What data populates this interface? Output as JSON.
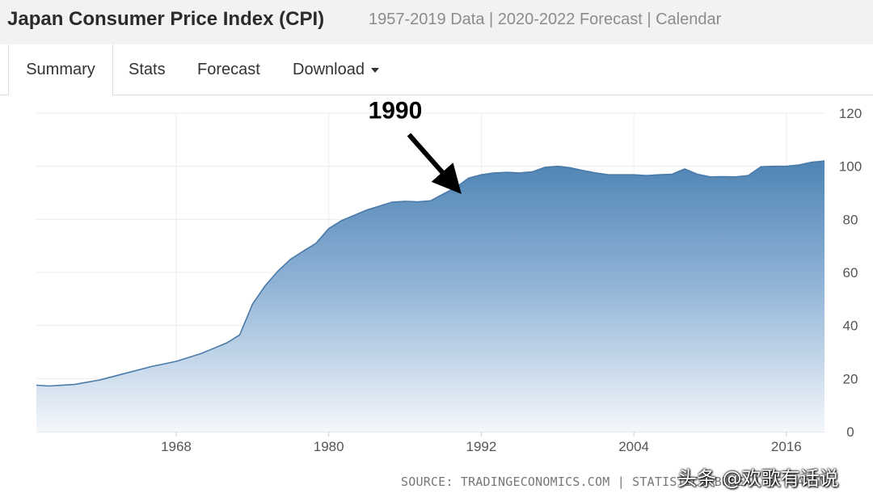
{
  "header": {
    "title": "Japan Consumer Price Index (CPI)",
    "subtitle": "1957-2019 Data | 2020-2022 Forecast | Calendar"
  },
  "tabs": [
    {
      "label": "Summary",
      "active": true
    },
    {
      "label": "Stats",
      "active": false
    },
    {
      "label": "Forecast",
      "active": false
    },
    {
      "label": "Download",
      "active": false,
      "dropdown": true
    }
  ],
  "chart_data": {
    "type": "area",
    "title": "Japan Consumer Price Index (CPI)",
    "xlabel": "",
    "ylabel": "",
    "x_ticks": [
      "1968",
      "1980",
      "1992",
      "2004",
      "2016"
    ],
    "y_ticks": [
      0,
      20,
      40,
      60,
      80,
      100,
      120
    ],
    "xlim": [
      1957,
      2019
    ],
    "ylim": [
      0,
      120
    ],
    "grid": true,
    "y_axis_side": "right",
    "fill_color_top": "#4f84b4",
    "fill_color_bottom": "#f4f7fb",
    "line_color": "#4a7aa8",
    "series": [
      {
        "name": "CPI",
        "x": [
          1957,
          1958,
          1960,
          1962,
          1964,
          1966,
          1968,
          1970,
          1972,
          1973,
          1974,
          1975,
          1976,
          1977,
          1978,
          1979,
          1980,
          1981,
          1982,
          1983,
          1984,
          1985,
          1986,
          1987,
          1988,
          1989,
          1990,
          1991,
          1992,
          1993,
          1994,
          1995,
          1996,
          1997,
          1998,
          1999,
          2000,
          2001,
          2002,
          2003,
          2004,
          2005,
          2006,
          2007,
          2008,
          2009,
          2010,
          2011,
          2012,
          2013,
          2014,
          2015,
          2016,
          2017,
          2018,
          2019
        ],
        "values": [
          17.5,
          17.2,
          17.8,
          19.5,
          22.0,
          24.5,
          26.5,
          29.5,
          33.5,
          36.5,
          48.0,
          55.0,
          60.5,
          65.0,
          68.0,
          71.0,
          76.5,
          79.5,
          81.5,
          83.5,
          85.0,
          86.5,
          86.8,
          86.6,
          87.0,
          89.5,
          92.0,
          95.5,
          96.8,
          97.5,
          97.7,
          97.5,
          97.9,
          99.6,
          100.0,
          99.4,
          98.4,
          97.5,
          96.8,
          96.8,
          96.8,
          96.5,
          96.8,
          97.0,
          99.0,
          97.0,
          96.0,
          96.1,
          96.0,
          96.5,
          99.8,
          100.0,
          100.0,
          100.5,
          101.5,
          102.0
        ]
      }
    ],
    "annotations": [
      {
        "text": "1990",
        "x": 1990,
        "y": 90
      }
    ]
  },
  "source": "SOURCE: TRADINGECONOMICS.COM | STATISTICS BUREAU OF JAPAN",
  "watermark": "头条 @欢歌有话说"
}
